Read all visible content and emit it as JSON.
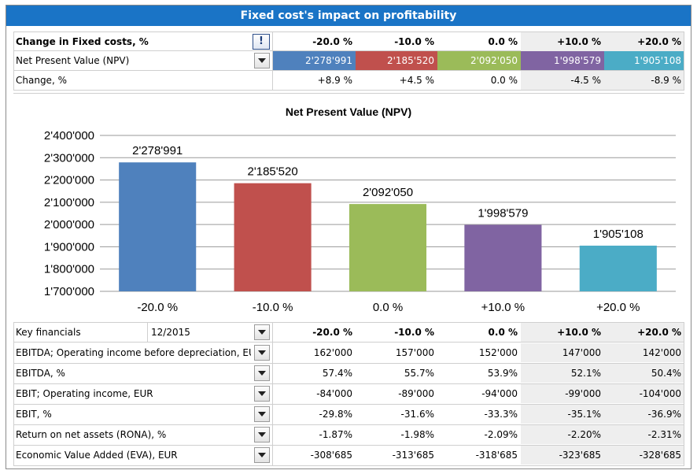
{
  "title": "Fixed cost's impact on profitability",
  "colors": {
    "header_bg": "#1a74c6",
    "highlight_col": "#eeeeee",
    "series": [
      "#4f81bd",
      "#c0504d",
      "#9bbb59",
      "#8064a2",
      "#4bacc6"
    ]
  },
  "scenario_header": {
    "label": "Change in Fixed costs, %",
    "info_icon": "!",
    "columns": [
      "-20.0 %",
      "-10.0 %",
      "0.0 %",
      "+10.0 %",
      "+20.0 %"
    ]
  },
  "npv_row": {
    "label": "Net Present Value (NPV)",
    "values": [
      "2'278'991",
      "2'185'520",
      "2'092'050",
      "1'998'579",
      "1'905'108"
    ]
  },
  "change_row": {
    "label": "Change, %",
    "values": [
      "+8.9 %",
      "+4.5 %",
      "0.0 %",
      "-4.5 %",
      "-8.9 %"
    ]
  },
  "chart_data": {
    "type": "bar",
    "title": "Net Present Value (NPV)",
    "categories": [
      "-20.0 %",
      "-10.0 %",
      "0.0 %",
      "+10.0 %",
      "+20.0 %"
    ],
    "values": [
      2278991,
      2185520,
      2092050,
      1998579,
      1905108
    ],
    "value_labels": [
      "2'278'991",
      "2'185'520",
      "2'092'050",
      "1'998'579",
      "1'905'108"
    ],
    "ylim": [
      1700000,
      2400000
    ],
    "yticks": [
      1700000,
      1800000,
      1900000,
      2000000,
      2100000,
      2200000,
      2300000,
      2400000
    ],
    "ytick_labels": [
      "1'700'000",
      "1'800'000",
      "1'900'000",
      "2'000'000",
      "2'100'000",
      "2'200'000",
      "2'300'000",
      "2'400'000"
    ],
    "grid": true,
    "xlabel": "",
    "ylabel": ""
  },
  "key_financials": {
    "label": "Key financials",
    "period": "12/2015",
    "columns": [
      "-20.0 %",
      "-10.0 %",
      "0.0 %",
      "+10.0 %",
      "+20.0 %"
    ],
    "rows": [
      {
        "label": "EBITDA; Operating income before depreciation, EUR",
        "values": [
          "162'000",
          "157'000",
          "152'000",
          "147'000",
          "142'000"
        ]
      },
      {
        "label": "EBITDA, %",
        "values": [
          "57.4%",
          "55.7%",
          "53.9%",
          "52.1%",
          "50.4%"
        ]
      },
      {
        "label": "EBIT; Operating income, EUR",
        "values": [
          "-84'000",
          "-89'000",
          "-94'000",
          "-99'000",
          "-104'000"
        ]
      },
      {
        "label": "EBIT, %",
        "values": [
          "-29.8%",
          "-31.6%",
          "-33.3%",
          "-35.1%",
          "-36.9%"
        ]
      },
      {
        "label": "Return on net assets (RONA), %",
        "values": [
          "-1.87%",
          "-1.98%",
          "-2.09%",
          "-2.20%",
          "-2.31%"
        ]
      },
      {
        "label": "Economic Value Added (EVA), EUR",
        "values": [
          "-308'685",
          "-313'685",
          "-318'685",
          "-323'685",
          "-328'685"
        ]
      }
    ]
  }
}
